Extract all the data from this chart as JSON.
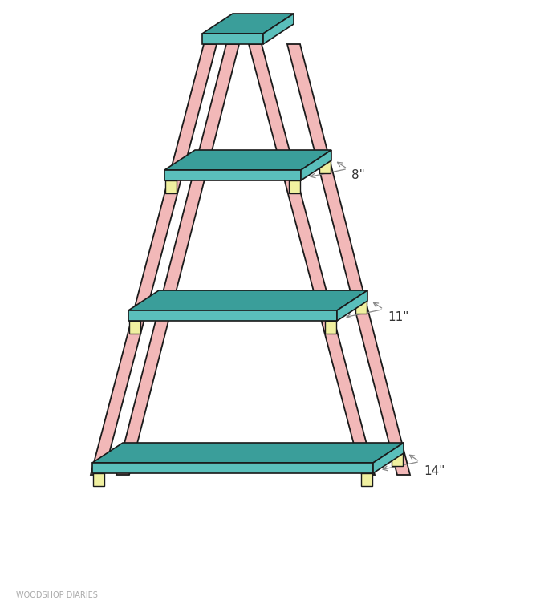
{
  "background_color": "#ffffff",
  "leg_color": "#f2b8b8",
  "leg_edge_color": "#1a1a1a",
  "shelf_face_color": "#5abfbb",
  "shelf_top_color": "#3a9e9a",
  "shelf_edge_color": "#1a1a1a",
  "foot_color": "#f0f0a0",
  "foot_edge_color": "#1a1a1a",
  "annotation_color": "#888888",
  "text_color": "#333333",
  "watermark": "WOODSHOP DIARIES",
  "watermark_color": "#aaaaaa",
  "dim_labels": [
    "8\"",
    "11\"",
    "14\""
  ],
  "figsize": [
    6.73,
    7.63
  ],
  "dpi": 100
}
